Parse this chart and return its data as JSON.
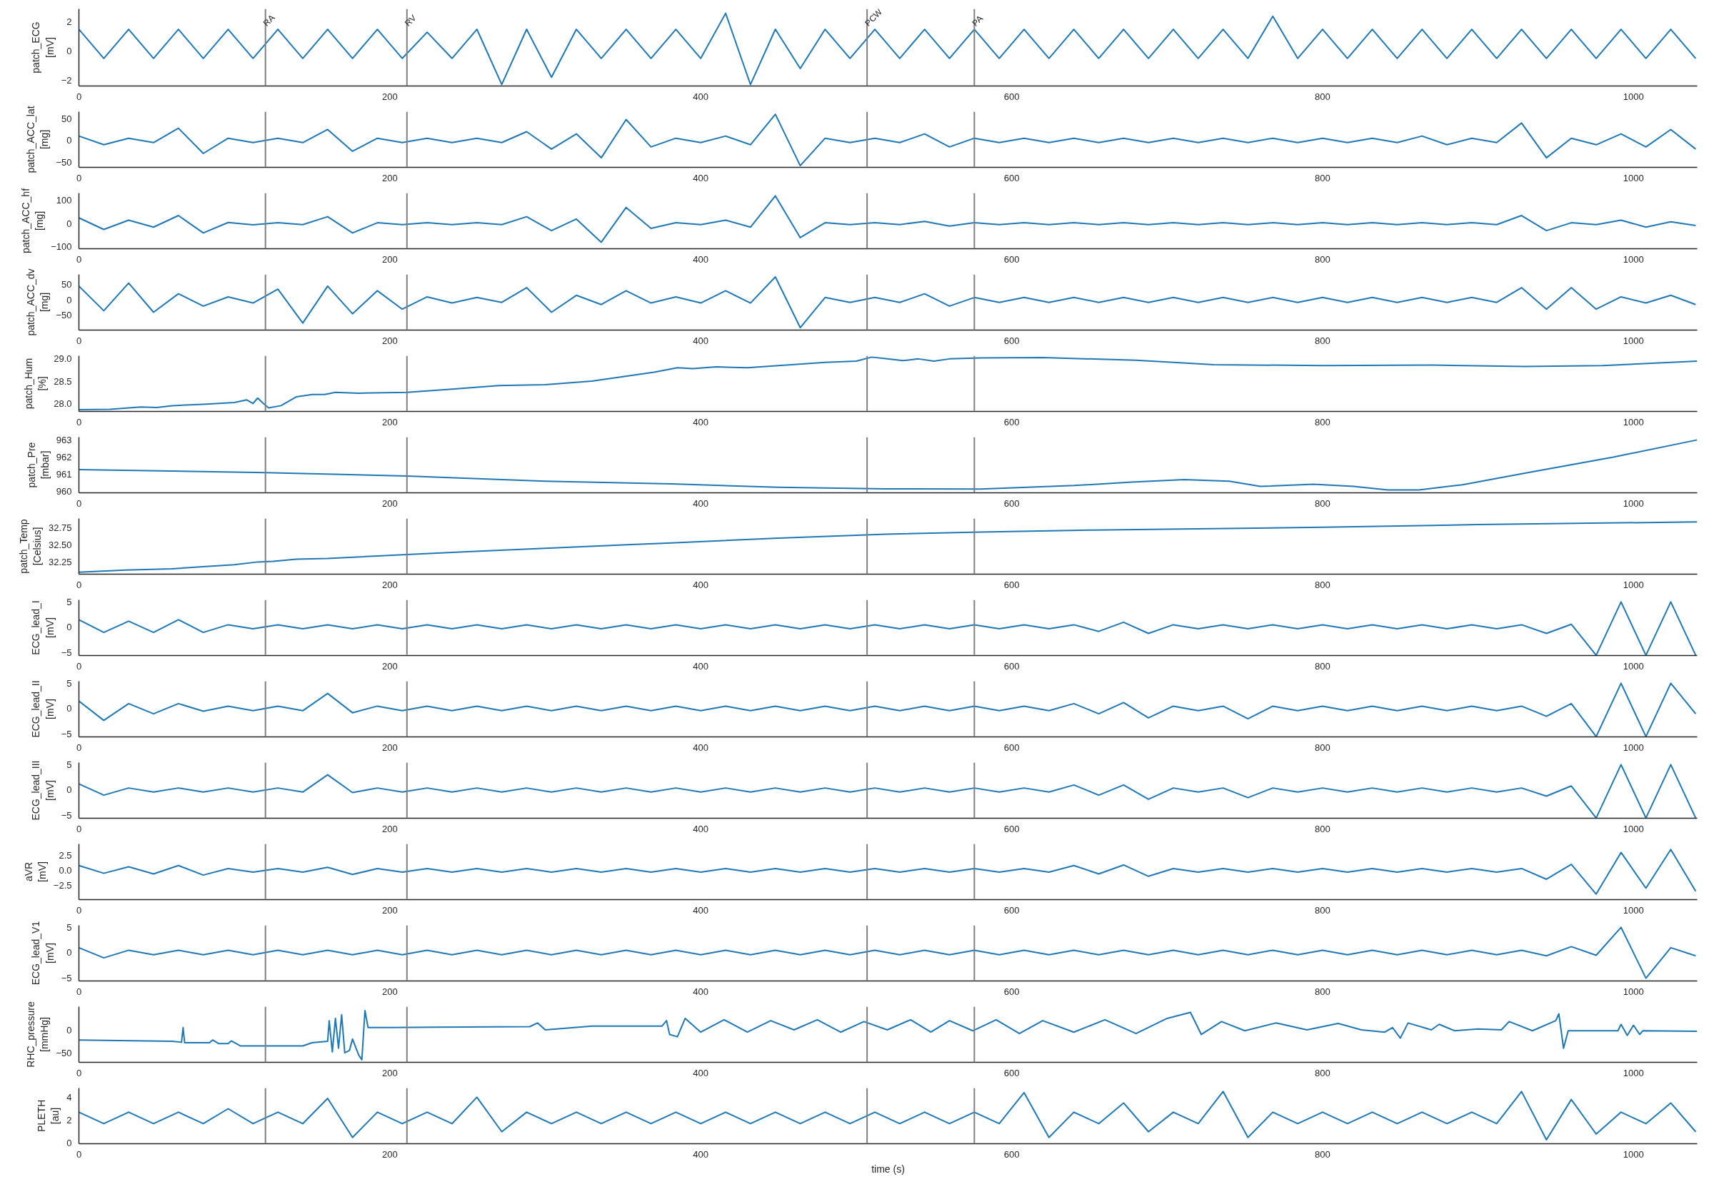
{
  "chart_data": [
    {
      "type": "line",
      "ylabel": "patch_ECG\n[mV]",
      "color": "#1f77b4",
      "xlim": [
        0,
        1041
      ],
      "xticks": [
        0,
        200,
        400,
        600,
        800,
        1000
      ],
      "ylim": [
        -2.4,
        2.9
      ],
      "yticks": [
        {
          "value": -2,
          "label": "−2"
        },
        0,
        2
      ],
      "ref_lines": [
        {
          "axis": "x",
          "value": 120,
          "label": "RA",
          "color": "#808080"
        },
        {
          "axis": "x",
          "value": 211,
          "label": "RV",
          "color": "#808080"
        },
        {
          "axis": "x",
          "value": 507,
          "label": "PCW",
          "color": "#808080"
        },
        {
          "axis": "x",
          "value": 576,
          "label": "PA",
          "color": "#808080"
        }
      ],
      "x": [
        0,
        16,
        32,
        48,
        64,
        80,
        96,
        112,
        128,
        144,
        160,
        176,
        192,
        208,
        224,
        240,
        256,
        272,
        288,
        304,
        320,
        336,
        352,
        368,
        384,
        400,
        416,
        432,
        448,
        464,
        480,
        496,
        512,
        528,
        544,
        560,
        576,
        592,
        608,
        624,
        640,
        656,
        672,
        688,
        704,
        720,
        736,
        752,
        768,
        784,
        800,
        816,
        832,
        848,
        864,
        880,
        896,
        912,
        928,
        944,
        960,
        976,
        992,
        1008,
        1024,
        1040
      ],
      "values": [
        1.5,
        -0.5,
        1.5,
        -0.5,
        1.5,
        -0.5,
        1.5,
        -0.5,
        1.5,
        -0.5,
        1.5,
        -0.5,
        1.5,
        -0.5,
        1.3,
        -0.5,
        1.5,
        -2.3,
        1.5,
        -1.8,
        1.5,
        -0.5,
        1.5,
        -0.5,
        1.5,
        -0.5,
        2.6,
        -2.3,
        1.5,
        -1.2,
        1.5,
        -0.5,
        1.5,
        -0.5,
        1.5,
        -0.5,
        1.5,
        -0.5,
        1.5,
        -0.5,
        1.5,
        -0.5,
        1.5,
        -0.5,
        1.5,
        -0.5,
        1.5,
        -0.5,
        2.4,
        -0.5,
        1.5,
        -0.5,
        1.5,
        -0.5,
        1.5,
        -0.5,
        1.5,
        -0.5,
        1.5,
        -0.5,
        1.5,
        -0.5,
        1.5,
        -0.5,
        1.5,
        -0.5
      ]
    },
    {
      "type": "line",
      "ylabel": "patch_ACC_lat\n[mg]",
      "color": "#1f77b4",
      "xlim": [
        0,
        1041
      ],
      "xticks": [
        0,
        200,
        400,
        600,
        800,
        1000
      ],
      "ylim": [
        -62,
        66
      ],
      "yticks": [
        {
          "value": -50,
          "label": "−50"
        },
        0,
        50
      ],
      "ref_lines": [
        {
          "axis": "x",
          "value": 120,
          "color": "#808080"
        },
        {
          "axis": "x",
          "value": 211,
          "color": "#808080"
        },
        {
          "axis": "x",
          "value": 507,
          "color": "#808080"
        },
        {
          "axis": "x",
          "value": 576,
          "color": "#808080"
        }
      ],
      "x": [
        0,
        16,
        32,
        48,
        64,
        80,
        96,
        112,
        128,
        144,
        160,
        176,
        192,
        208,
        224,
        240,
        256,
        272,
        288,
        304,
        320,
        336,
        352,
        368,
        384,
        400,
        416,
        432,
        448,
        464,
        480,
        496,
        512,
        528,
        544,
        560,
        576,
        592,
        608,
        624,
        640,
        656,
        672,
        688,
        704,
        720,
        736,
        752,
        768,
        784,
        800,
        816,
        832,
        848,
        864,
        880,
        896,
        912,
        928,
        944,
        960,
        976,
        992,
        1008,
        1024,
        1040
      ],
      "values": [
        10,
        -10,
        5,
        -5,
        28,
        -30,
        5,
        -5,
        5,
        -5,
        25,
        -25,
        5,
        -5,
        5,
        -5,
        5,
        -5,
        20,
        -20,
        15,
        -40,
        48,
        -15,
        5,
        -5,
        10,
        -10,
        60,
        -58,
        5,
        -5,
        5,
        -5,
        15,
        -15,
        5,
        -5,
        5,
        -5,
        5,
        -5,
        5,
        -5,
        5,
        -5,
        5,
        -5,
        5,
        -5,
        5,
        -5,
        5,
        -5,
        10,
        -10,
        5,
        -5,
        40,
        -40,
        5,
        -10,
        15,
        -15,
        25,
        -20
      ]
    },
    {
      "type": "line",
      "ylabel": "patch_ACC_hf\n[mg]",
      "color": "#1f77b4",
      "xlim": [
        0,
        1041
      ],
      "xticks": [
        0,
        200,
        400,
        600,
        800,
        1000
      ],
      "ylim": [
        -108,
        132
      ],
      "yticks": [
        {
          "value": -100,
          "label": "−100"
        },
        0,
        100
      ],
      "ref_lines": [
        {
          "axis": "x",
          "value": 120,
          "color": "#808080"
        },
        {
          "axis": "x",
          "value": 211,
          "color": "#808080"
        },
        {
          "axis": "x",
          "value": 507,
          "color": "#808080"
        },
        {
          "axis": "x",
          "value": 576,
          "color": "#808080"
        }
      ],
      "x": [
        0,
        16,
        32,
        48,
        64,
        80,
        96,
        112,
        128,
        144,
        160,
        176,
        192,
        208,
        224,
        240,
        256,
        272,
        288,
        304,
        320,
        336,
        352,
        368,
        384,
        400,
        416,
        432,
        448,
        464,
        480,
        496,
        512,
        528,
        544,
        560,
        576,
        592,
        608,
        624,
        640,
        656,
        672,
        688,
        704,
        720,
        736,
        752,
        768,
        784,
        800,
        816,
        832,
        848,
        864,
        880,
        896,
        912,
        928,
        944,
        960,
        976,
        992,
        1008,
        1024,
        1040
      ],
      "values": [
        25,
        -25,
        15,
        -15,
        35,
        -40,
        5,
        -5,
        4,
        -4,
        30,
        -40,
        4,
        -4,
        4,
        -4,
        4,
        -4,
        30,
        -30,
        20,
        -80,
        70,
        -20,
        4,
        -4,
        15,
        -15,
        120,
        -60,
        4,
        -4,
        4,
        -4,
        10,
        -10,
        4,
        -4,
        4,
        -4,
        4,
        -4,
        4,
        -4,
        4,
        -4,
        4,
        -4,
        4,
        -4,
        4,
        -4,
        4,
        -4,
        4,
        -4,
        4,
        -4,
        35,
        -30,
        4,
        -4,
        15,
        -15,
        8,
        -8
      ]
    },
    {
      "type": "line",
      "ylabel": "patch_ACC_dv\n[mg]",
      "color": "#1f77b4",
      "xlim": [
        0,
        1041
      ],
      "xticks": [
        0,
        200,
        400,
        600,
        800,
        1000
      ],
      "ylim": [
        -98,
        83
      ],
      "yticks": [
        {
          "value": -50,
          "label": "−50"
        },
        0,
        50
      ],
      "ref_lines": [
        {
          "axis": "x",
          "value": 120,
          "color": "#808080"
        },
        {
          "axis": "x",
          "value": 211,
          "color": "#808080"
        },
        {
          "axis": "x",
          "value": 507,
          "color": "#808080"
        },
        {
          "axis": "x",
          "value": 576,
          "color": "#808080"
        }
      ],
      "x": [
        0,
        16,
        32,
        48,
        64,
        80,
        96,
        112,
        128,
        144,
        160,
        176,
        192,
        208,
        224,
        240,
        256,
        272,
        288,
        304,
        320,
        336,
        352,
        368,
        384,
        400,
        416,
        432,
        448,
        464,
        480,
        496,
        512,
        528,
        544,
        560,
        576,
        592,
        608,
        624,
        640,
        656,
        672,
        688,
        704,
        720,
        736,
        752,
        768,
        784,
        800,
        816,
        832,
        848,
        864,
        880,
        896,
        912,
        928,
        944,
        960,
        976,
        992,
        1008,
        1024,
        1040
      ],
      "values": [
        45,
        -35,
        55,
        -40,
        20,
        -20,
        10,
        -10,
        35,
        -75,
        45,
        -45,
        30,
        -30,
        10,
        -10,
        8,
        -8,
        40,
        -40,
        15,
        -15,
        30,
        -10,
        10,
        -10,
        30,
        -10,
        75,
        -90,
        8,
        -8,
        8,
        -8,
        20,
        -20,
        8,
        -8,
        8,
        -8,
        8,
        -8,
        8,
        -8,
        8,
        -8,
        8,
        -8,
        8,
        -8,
        8,
        -8,
        8,
        -8,
        8,
        -8,
        8,
        -8,
        40,
        -30,
        40,
        -30,
        10,
        -10,
        15,
        -15
      ]
    },
    {
      "type": "line",
      "ylabel": "patch_Hum\n[%]",
      "color": "#1f77b4",
      "xlim": [
        0,
        1041
      ],
      "xticks": [
        0,
        200,
        400,
        600,
        800,
        1000
      ],
      "ylim": [
        27.82,
        29.07
      ],
      "yticks": [
        {
          "value": 28,
          "label": "28.0"
        },
        28.5,
        {
          "value": 29,
          "label": "29.0"
        }
      ],
      "ref_lines": [
        {
          "axis": "x",
          "value": 120,
          "color": "#808080"
        },
        {
          "axis": "x",
          "value": 211,
          "color": "#808080"
        },
        {
          "axis": "x",
          "value": 507,
          "color": "#808080"
        },
        {
          "axis": "x",
          "value": 576,
          "color": "#808080"
        }
      ],
      "x": [
        0,
        20,
        40,
        50,
        60,
        80,
        90,
        100,
        108,
        112,
        115,
        118,
        122,
        130,
        140,
        150,
        158,
        165,
        180,
        211,
        240,
        270,
        300,
        330,
        350,
        370,
        385,
        395,
        410,
        430,
        450,
        480,
        500,
        510,
        520,
        530,
        540,
        550,
        560,
        580,
        620,
        680,
        730,
        800,
        870,
        930,
        980,
        1041
      ],
      "values": [
        27.86,
        27.87,
        27.92,
        27.91,
        27.95,
        27.98,
        28.0,
        28.02,
        28.08,
        28.0,
        28.12,
        28.02,
        27.9,
        27.95,
        28.15,
        28.2,
        28.2,
        28.25,
        28.23,
        28.25,
        28.32,
        28.4,
        28.42,
        28.5,
        28.6,
        28.7,
        28.8,
        28.78,
        28.82,
        28.8,
        28.85,
        28.92,
        28.95,
        29.04,
        29.0,
        28.96,
        29.0,
        28.95,
        29.0,
        29.02,
        29.03,
        28.97,
        28.87,
        28.85,
        28.86,
        28.83,
        28.85,
        28.95
      ]
    },
    {
      "type": "line",
      "ylabel": "patch_Pre\n[mbar]",
      "color": "#1f77b4",
      "xlim": [
        0,
        1041
      ],
      "xticks": [
        0,
        200,
        400,
        600,
        800,
        1000
      ],
      "ylim": [
        959.93,
        963.16
      ],
      "yticks": [
        960,
        961,
        962,
        963
      ],
      "ref_lines": [
        {
          "axis": "x",
          "value": 120,
          "color": "#808080"
        },
        {
          "axis": "x",
          "value": 211,
          "color": "#808080"
        },
        {
          "axis": "x",
          "value": 507,
          "color": "#808080"
        },
        {
          "axis": "x",
          "value": 576,
          "color": "#808080"
        }
      ],
      "x": [
        0,
        120,
        211,
        300,
        381,
        450,
        519,
        580,
        640,
        677,
        711,
        740,
        760,
        794,
        820,
        842,
        862,
        890,
        932,
        987,
        1041
      ],
      "values": [
        961.28,
        961.1,
        960.9,
        960.6,
        960.45,
        960.25,
        960.16,
        960.15,
        960.35,
        960.55,
        960.7,
        960.6,
        960.3,
        960.43,
        960.3,
        960.1,
        960.1,
        960.4,
        961.1,
        962.0,
        963.0
      ]
    },
    {
      "type": "line",
      "ylabel": "patch_Temp\n[Celsius]",
      "color": "#1f77b4",
      "xlim": [
        0,
        1041
      ],
      "xticks": [
        0,
        200,
        400,
        600,
        800,
        1000
      ],
      "ylim": [
        32.07,
        32.89
      ],
      "yticks": [
        32.25,
        {
          "value": 32.5,
          "label": "32.50"
        },
        32.75
      ],
      "ref_lines": [
        {
          "axis": "x",
          "value": 120,
          "color": "#808080"
        },
        {
          "axis": "x",
          "value": 211,
          "color": "#808080"
        },
        {
          "axis": "x",
          "value": 507,
          "color": "#808080"
        },
        {
          "axis": "x",
          "value": 576,
          "color": "#808080"
        }
      ],
      "x": [
        0,
        30,
        60,
        80,
        100,
        115,
        125,
        140,
        160,
        211,
        250,
        300,
        350,
        381,
        450,
        519,
        580,
        652,
        800,
        900,
        1041
      ],
      "values": [
        32.1,
        32.13,
        32.15,
        32.18,
        32.21,
        32.25,
        32.26,
        32.29,
        32.3,
        32.36,
        32.4,
        32.45,
        32.5,
        32.53,
        32.6,
        32.66,
        32.69,
        32.72,
        32.76,
        32.8,
        32.84
      ]
    },
    {
      "type": "line",
      "ylabel": "ECG_lead_I\n[mV]",
      "color": "#1f77b4",
      "xlim": [
        0,
        1041
      ],
      "xticks": [
        0,
        200,
        400,
        600,
        800,
        1000
      ],
      "ylim": [
        -5.55,
        5.4
      ],
      "yticks": [
        {
          "value": -5,
          "label": "−5"
        },
        0,
        5
      ],
      "ref_lines": [
        {
          "axis": "x",
          "value": 120,
          "color": "#808080"
        },
        {
          "axis": "x",
          "value": 211,
          "color": "#808080"
        },
        {
          "axis": "x",
          "value": 507,
          "color": "#808080"
        },
        {
          "axis": "x",
          "value": 576,
          "color": "#808080"
        }
      ],
      "x": [
        0,
        16,
        32,
        48,
        64,
        80,
        96,
        112,
        128,
        144,
        160,
        176,
        192,
        208,
        224,
        240,
        256,
        272,
        288,
        304,
        320,
        336,
        352,
        368,
        384,
        400,
        416,
        432,
        448,
        464,
        480,
        496,
        512,
        528,
        544,
        560,
        576,
        592,
        608,
        624,
        640,
        656,
        672,
        688,
        704,
        720,
        736,
        752,
        768,
        784,
        800,
        816,
        832,
        848,
        864,
        880,
        896,
        912,
        928,
        944,
        960,
        976,
        992,
        1008,
        1024,
        1040
      ],
      "values": [
        1.5,
        -1.0,
        1.2,
        -1.0,
        1.5,
        -1.0,
        0.5,
        -0.3,
        0.5,
        -0.3,
        0.5,
        -0.3,
        0.5,
        -0.3,
        0.5,
        -0.3,
        0.5,
        -0.3,
        0.5,
        -0.3,
        0.5,
        -0.3,
        0.5,
        -0.3,
        0.5,
        -0.3,
        0.5,
        -0.3,
        0.5,
        -0.3,
        0.5,
        -0.3,
        0.5,
        -0.3,
        0.5,
        -0.3,
        0.5,
        -0.3,
        0.5,
        -0.3,
        0.5,
        -0.8,
        1.0,
        -1.2,
        0.5,
        -0.3,
        0.5,
        -0.3,
        0.5,
        -0.3,
        0.5,
        -0.3,
        0.5,
        -0.3,
        0.5,
        -0.3,
        0.5,
        -0.3,
        0.5,
        -1.2,
        0.6,
        -5.5,
        5,
        -5.5,
        5,
        -5.5
      ]
    },
    {
      "type": "line",
      "ylabel": "ECG_lead_II\n[mV]",
      "color": "#1f77b4",
      "xlim": [
        0,
        1041
      ],
      "xticks": [
        0,
        200,
        400,
        600,
        800,
        1000
      ],
      "ylim": [
        -5.55,
        5.4
      ],
      "yticks": [
        {
          "value": -5,
          "label": "−5"
        },
        0,
        5
      ],
      "ref_lines": [
        {
          "axis": "x",
          "value": 120,
          "color": "#808080"
        },
        {
          "axis": "x",
          "value": 211,
          "color": "#808080"
        },
        {
          "axis": "x",
          "value": 507,
          "color": "#808080"
        },
        {
          "axis": "x",
          "value": 576,
          "color": "#808080"
        }
      ],
      "x": [
        0,
        16,
        32,
        48,
        64,
        80,
        96,
        112,
        128,
        144,
        160,
        176,
        192,
        208,
        224,
        240,
        256,
        272,
        288,
        304,
        320,
        336,
        352,
        368,
        384,
        400,
        416,
        432,
        448,
        464,
        480,
        496,
        512,
        528,
        544,
        560,
        576,
        592,
        608,
        624,
        640,
        656,
        672,
        688,
        704,
        720,
        736,
        752,
        768,
        784,
        800,
        816,
        832,
        848,
        864,
        880,
        896,
        912,
        928,
        944,
        960,
        976,
        992,
        1008,
        1024,
        1040
      ],
      "values": [
        1.5,
        -2.3,
        1.0,
        -1.0,
        1.0,
        -0.5,
        0.5,
        -0.4,
        0.5,
        -0.4,
        3.0,
        -0.8,
        0.5,
        -0.4,
        0.5,
        -0.4,
        0.5,
        -0.4,
        0.5,
        -0.4,
        0.5,
        -0.4,
        0.5,
        -0.4,
        0.5,
        -0.4,
        0.5,
        -0.4,
        0.5,
        -0.4,
        0.5,
        -0.4,
        0.5,
        -0.4,
        0.5,
        -0.4,
        0.5,
        -0.4,
        0.5,
        -0.4,
        1.0,
        -1.0,
        1.2,
        -1.8,
        0.5,
        -0.4,
        0.5,
        -2.0,
        0.5,
        -0.4,
        0.5,
        -0.4,
        0.5,
        -0.4,
        0.5,
        -0.4,
        0.5,
        -0.4,
        0.5,
        -1.5,
        1.0,
        -5.5,
        5,
        -5.5,
        5,
        -1.0
      ]
    },
    {
      "type": "line",
      "ylabel": "ECG_lead_III\n[mV]",
      "color": "#1f77b4",
      "xlim": [
        0,
        1041
      ],
      "xticks": [
        0,
        200,
        400,
        600,
        800,
        1000
      ],
      "ylim": [
        -5.55,
        5.4
      ],
      "yticks": [
        {
          "value": -5,
          "label": "−5"
        },
        0,
        5
      ],
      "ref_lines": [
        {
          "axis": "x",
          "value": 120,
          "color": "#808080"
        },
        {
          "axis": "x",
          "value": 211,
          "color": "#808080"
        },
        {
          "axis": "x",
          "value": 507,
          "color": "#808080"
        },
        {
          "axis": "x",
          "value": 576,
          "color": "#808080"
        }
      ],
      "x": [
        0,
        16,
        32,
        48,
        64,
        80,
        96,
        112,
        128,
        144,
        160,
        176,
        192,
        208,
        224,
        240,
        256,
        272,
        288,
        304,
        320,
        336,
        352,
        368,
        384,
        400,
        416,
        432,
        448,
        464,
        480,
        496,
        512,
        528,
        544,
        560,
        576,
        592,
        608,
        624,
        640,
        656,
        672,
        688,
        704,
        720,
        736,
        752,
        768,
        784,
        800,
        816,
        832,
        848,
        864,
        880,
        896,
        912,
        928,
        944,
        960,
        976,
        992,
        1008,
        1024,
        1040
      ],
      "values": [
        1.2,
        -1.0,
        0.4,
        -0.4,
        0.4,
        -0.4,
        0.4,
        -0.4,
        0.4,
        -0.4,
        3.0,
        -0.5,
        0.4,
        -0.4,
        0.4,
        -0.4,
        0.4,
        -0.4,
        0.4,
        -0.4,
        0.4,
        -0.4,
        0.4,
        -0.4,
        0.4,
        -0.4,
        0.4,
        -0.4,
        0.4,
        -0.4,
        0.4,
        -0.4,
        0.4,
        -0.4,
        0.4,
        -0.4,
        0.4,
        -0.4,
        0.4,
        -0.4,
        1.0,
        -1.0,
        1.0,
        -1.8,
        0.4,
        -0.4,
        0.4,
        -1.5,
        0.4,
        -0.4,
        0.4,
        -0.4,
        0.4,
        -0.4,
        0.4,
        -0.4,
        0.4,
        -0.4,
        0.4,
        -1.2,
        0.8,
        -5.5,
        5,
        -5.5,
        5,
        -5.5
      ]
    },
    {
      "type": "line",
      "ylabel": "aVR\n[mV]",
      "color": "#1f77b4",
      "xlim": [
        0,
        1041
      ],
      "xticks": [
        0,
        200,
        400,
        600,
        800,
        1000
      ],
      "ylim": [
        -4.92,
        4.43
      ],
      "yticks": [
        {
          "value": -2.5,
          "label": "−2.5"
        },
        {
          "value": 0,
          "label": "0.0"
        },
        2.5
      ],
      "ref_lines": [
        {
          "axis": "x",
          "value": 120,
          "color": "#808080"
        },
        {
          "axis": "x",
          "value": 211,
          "color": "#808080"
        },
        {
          "axis": "x",
          "value": 507,
          "color": "#808080"
        },
        {
          "axis": "x",
          "value": 576,
          "color": "#808080"
        }
      ],
      "x": [
        0,
        16,
        32,
        48,
        64,
        80,
        96,
        112,
        128,
        144,
        160,
        176,
        192,
        208,
        224,
        240,
        256,
        272,
        288,
        304,
        320,
        336,
        352,
        368,
        384,
        400,
        416,
        432,
        448,
        464,
        480,
        496,
        512,
        528,
        544,
        560,
        576,
        592,
        608,
        624,
        640,
        656,
        672,
        688,
        704,
        720,
        736,
        752,
        768,
        784,
        800,
        816,
        832,
        848,
        864,
        880,
        896,
        912,
        928,
        944,
        960,
        976,
        992,
        1008,
        1024,
        1040
      ],
      "values": [
        0.8,
        -0.5,
        0.6,
        -0.6,
        0.8,
        -0.8,
        0.3,
        -0.3,
        0.3,
        -0.3,
        0.5,
        -0.7,
        0.3,
        -0.3,
        0.3,
        -0.3,
        0.3,
        -0.3,
        0.3,
        -0.3,
        0.3,
        -0.3,
        0.3,
        -0.3,
        0.3,
        -0.3,
        0.3,
        -0.3,
        0.3,
        -0.3,
        0.3,
        -0.3,
        0.3,
        -0.3,
        0.3,
        -0.3,
        0.3,
        -0.3,
        0.3,
        -0.3,
        0.8,
        -0.6,
        0.9,
        -1.0,
        0.3,
        -0.3,
        0.3,
        -0.3,
        0.3,
        -0.3,
        0.3,
        -0.3,
        0.3,
        -0.3,
        0.3,
        -0.3,
        0.3,
        -0.3,
        0.3,
        -1.5,
        1.0,
        -4.0,
        3.0,
        -3.0,
        3.5,
        -3.5
      ]
    },
    {
      "type": "line",
      "ylabel": "ECG_lead_V1\n[mV]",
      "color": "#1f77b4",
      "xlim": [
        0,
        1041
      ],
      "xticks": [
        0,
        200,
        400,
        600,
        800,
        1000
      ],
      "ylim": [
        -5.55,
        5.4
      ],
      "yticks": [
        {
          "value": -5,
          "label": "−5"
        },
        0,
        5
      ],
      "ref_lines": [
        {
          "axis": "x",
          "value": 120,
          "color": "#808080"
        },
        {
          "axis": "x",
          "value": 211,
          "color": "#808080"
        },
        {
          "axis": "x",
          "value": 507,
          "color": "#808080"
        },
        {
          "axis": "x",
          "value": 576,
          "color": "#808080"
        }
      ],
      "x": [
        0,
        16,
        32,
        48,
        64,
        80,
        96,
        112,
        128,
        144,
        160,
        176,
        192,
        208,
        224,
        240,
        256,
        272,
        288,
        304,
        320,
        336,
        352,
        368,
        384,
        400,
        416,
        432,
        448,
        464,
        480,
        496,
        512,
        528,
        544,
        560,
        576,
        592,
        608,
        624,
        640,
        656,
        672,
        688,
        704,
        720,
        736,
        752,
        768,
        784,
        800,
        816,
        832,
        848,
        864,
        880,
        896,
        912,
        928,
        944,
        960,
        976,
        992,
        1008,
        1024,
        1040
      ],
      "values": [
        1.0,
        -1.0,
        0.5,
        -0.4,
        0.5,
        -0.4,
        0.5,
        -0.4,
        0.5,
        -0.4,
        0.5,
        -0.4,
        0.5,
        -0.4,
        0.5,
        -0.4,
        0.5,
        -0.4,
        0.5,
        -0.4,
        0.5,
        -0.4,
        0.5,
        -0.4,
        0.5,
        -0.4,
        0.5,
        -0.4,
        0.5,
        -0.4,
        0.5,
        -0.4,
        0.5,
        -0.4,
        0.5,
        -0.4,
        0.5,
        -0.4,
        0.5,
        -0.4,
        0.5,
        -0.4,
        0.5,
        -0.4,
        0.5,
        -0.4,
        0.5,
        -0.4,
        0.5,
        -0.4,
        0.5,
        -0.4,
        0.5,
        -0.4,
        0.5,
        -0.4,
        0.5,
        -0.4,
        0.5,
        -0.6,
        1.2,
        -0.5,
        5,
        -5,
        1.0,
        -0.6
      ]
    },
    {
      "type": "line",
      "ylabel": "RHC_pressure\n[mmHg]",
      "color": "#1f77b4",
      "xlim": [
        0,
        1041
      ],
      "xticks": [
        0,
        200,
        400,
        600,
        800,
        1000
      ],
      "ylim": [
        -70.7,
        50.5
      ],
      "yticks": [
        {
          "value": -50,
          "label": "−50"
        },
        0
      ],
      "ref_lines": [
        {
          "axis": "x",
          "value": 120,
          "color": "#808080"
        },
        {
          "axis": "x",
          "value": 211,
          "color": "#808080"
        },
        {
          "axis": "x",
          "value": 507,
          "color": "#808080"
        },
        {
          "axis": "x",
          "value": 576,
          "color": "#808080"
        }
      ],
      "x": [
        0,
        60,
        66,
        67,
        68,
        84,
        86,
        90,
        96,
        98,
        104,
        144,
        150,
        160,
        161,
        163,
        165,
        167,
        169,
        171,
        174,
        176,
        180,
        182,
        184,
        186,
        200,
        230,
        290,
        295,
        300,
        330,
        375,
        378,
        380,
        385,
        390,
        400,
        415,
        430,
        445,
        460,
        475,
        490,
        505,
        520,
        535,
        548,
        560,
        575,
        590,
        605,
        620,
        640,
        660,
        680,
        700,
        715,
        722,
        735,
        750,
        770,
        790,
        810,
        825,
        840,
        845,
        850,
        855,
        870,
        875,
        885,
        900,
        915,
        920,
        935,
        950,
        952,
        955,
        958,
        990,
        992,
        996,
        1000,
        1004,
        1006,
        1041
      ],
      "values": [
        -22,
        -25,
        -27,
        5,
        -28,
        -28,
        -22,
        -30,
        -30,
        -24,
        -35,
        -35,
        -28,
        -25,
        20,
        -48,
        25,
        -40,
        33,
        -50,
        -45,
        -20,
        -55,
        -65,
        42,
        5,
        5,
        6,
        7,
        15,
        0,
        8,
        8,
        20,
        -10,
        -15,
        25,
        -5,
        22,
        -5,
        20,
        0,
        22,
        -5,
        18,
        0,
        22,
        -5,
        20,
        -2,
        22,
        -8,
        20,
        -5,
        22,
        -8,
        25,
        38,
        -10,
        18,
        -2,
        15,
        0,
        14,
        0,
        -5,
        5,
        -18,
        15,
        0,
        12,
        -2,
        2,
        0,
        18,
        -2,
        20,
        35,
        -40,
        -2,
        -2,
        12,
        -12,
        10,
        -10,
        -2,
        -3
      ]
    },
    {
      "type": "line",
      "ylabel": "PLETH\n[au]",
      "xlabel": "time (s)",
      "color": "#1f77b4",
      "xlim": [
        0,
        1041
      ],
      "xticks": [
        0,
        200,
        400,
        600,
        800,
        1000
      ],
      "ylim": [
        -0.04,
        4.8
      ],
      "yticks": [
        0,
        2,
        4
      ],
      "ref_lines": [
        {
          "axis": "x",
          "value": 120,
          "color": "#808080"
        },
        {
          "axis": "x",
          "value": 211,
          "color": "#808080"
        },
        {
          "axis": "x",
          "value": 507,
          "color": "#808080"
        },
        {
          "axis": "x",
          "value": 576,
          "color": "#808080"
        }
      ],
      "x": [
        0,
        16,
        32,
        48,
        64,
        80,
        96,
        112,
        128,
        144,
        160,
        176,
        192,
        208,
        224,
        240,
        256,
        272,
        288,
        304,
        320,
        336,
        352,
        368,
        384,
        400,
        416,
        432,
        448,
        464,
        480,
        496,
        512,
        528,
        544,
        560,
        576,
        592,
        608,
        624,
        640,
        656,
        672,
        688,
        704,
        720,
        736,
        752,
        768,
        784,
        800,
        816,
        832,
        848,
        864,
        880,
        896,
        912,
        928,
        944,
        960,
        976,
        992,
        1008,
        1024,
        1040
      ],
      "values": [
        2.7,
        1.7,
        2.7,
        1.7,
        2.7,
        1.7,
        3.0,
        1.7,
        2.7,
        1.7,
        3.9,
        0.5,
        2.7,
        1.7,
        2.7,
        1.7,
        4.0,
        1.0,
        2.7,
        1.7,
        2.7,
        1.7,
        2.7,
        1.7,
        2.7,
        1.7,
        2.7,
        1.7,
        2.7,
        1.7,
        2.7,
        1.7,
        2.7,
        1.7,
        2.7,
        1.7,
        2.7,
        1.7,
        4.4,
        0.5,
        2.7,
        1.7,
        3.5,
        1.0,
        2.7,
        1.7,
        4.5,
        0.5,
        2.7,
        1.7,
        2.7,
        1.7,
        2.7,
        1.7,
        2.7,
        1.7,
        2.7,
        1.7,
        4.5,
        0.3,
        3.8,
        0.8,
        2.7,
        1.7,
        3.5,
        1.0
      ]
    }
  ]
}
